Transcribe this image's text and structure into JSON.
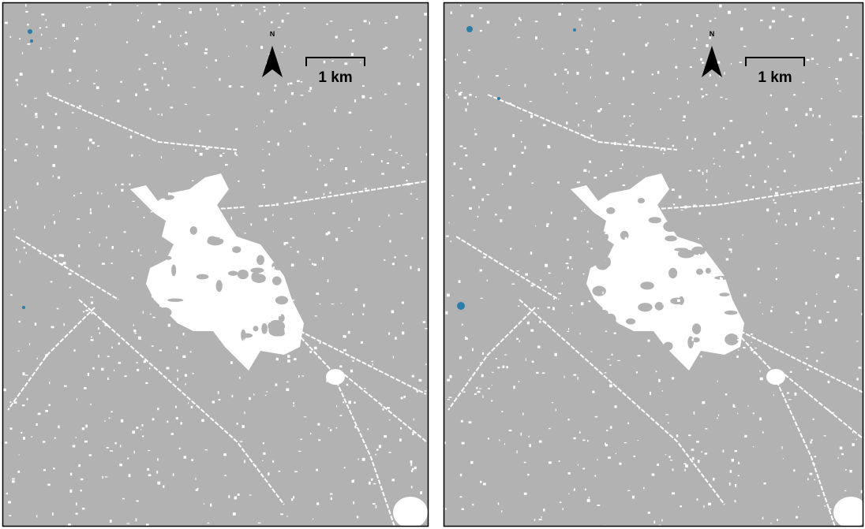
{
  "panels": [
    {
      "north_label": "N",
      "scale_label": "1 km"
    },
    {
      "north_label": "N",
      "scale_label": "1 km"
    }
  ]
}
